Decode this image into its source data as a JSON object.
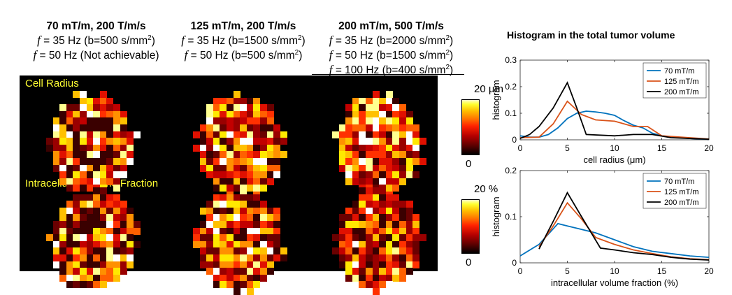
{
  "columns": [
    {
      "title": "70 mT/m, 200 T/m/s",
      "lines": [
        {
          "f": "f",
          "text": " = 35 Hz (b=500 s/mm",
          "sup": "2",
          "tail": ")"
        },
        {
          "f": "f",
          "text": " = 50 Hz (Not achievable)",
          "sup": "",
          "tail": ""
        }
      ]
    },
    {
      "title": "125 mT/m, 200 T/m/s",
      "lines": [
        {
          "f": "f",
          "text": " = 35 Hz (b=1500 s/mm",
          "sup": "2",
          "tail": ")"
        },
        {
          "f": "f",
          "text": " = 50 Hz (b=500 s/mm",
          "sup": "2",
          "tail": ")"
        }
      ]
    },
    {
      "title": "200 mT/m, 500 T/m/s",
      "lines": [
        {
          "f": "f",
          "text": " = 35 Hz (b=2000 s/mm",
          "sup": "2",
          "tail": ")"
        },
        {
          "f": "f",
          "text": " = 50 Hz (b=1500 s/mm",
          "sup": "2",
          "tail": ")"
        },
        {
          "f": "f",
          "text": " = 100 Hz (b=400 s/mm",
          "sup": "2",
          "tail": ")"
        }
      ]
    }
  ],
  "map_rows": [
    {
      "label": "Cell Radius",
      "colorbar_max": "20 µm",
      "colorbar_min": "0"
    },
    {
      "label": "Intracellular Volume Fraction",
      "colorbar_max": "20 %",
      "colorbar_min": "0"
    }
  ],
  "colors": {
    "70 mT/m": "#0072BD",
    "125 mT/m": "#D95319",
    "200 mT/m": "#000000",
    "map_label": "#ffff33"
  },
  "chart_data": [
    {
      "type": "line",
      "title": "Histogram in the total tumor volume",
      "xlabel": "cell radius (μm)",
      "ylabel": "histogram",
      "xlim": [
        0,
        20
      ],
      "ylim": [
        0,
        0.3
      ],
      "xticks": [
        0,
        5,
        10,
        15,
        20
      ],
      "yticks": [
        0,
        0.1,
        0.2,
        0.3
      ],
      "legend_position": "top-right",
      "series": [
        {
          "name": "70 mT/m",
          "color": "#0072BD",
          "x": [
            0,
            1,
            2,
            3,
            4,
            5,
            6,
            7,
            8,
            9,
            10,
            11,
            12,
            13,
            14,
            15,
            16,
            17,
            18,
            19,
            20
          ],
          "y": [
            0.015,
            0.01,
            0.01,
            0.02,
            0.045,
            0.08,
            0.1,
            0.108,
            0.105,
            0.1,
            0.092,
            0.072,
            0.055,
            0.045,
            0.025,
            0.015,
            0.01,
            0.008,
            0.005,
            0.003,
            0.002
          ]
        },
        {
          "name": "125 mT/m",
          "color": "#D95319",
          "x": [
            0,
            2,
            3.5,
            5,
            6.5,
            8,
            10,
            12,
            13.5,
            15,
            20
          ],
          "y": [
            0.008,
            0.01,
            0.06,
            0.145,
            0.095,
            0.075,
            0.07,
            0.05,
            0.05,
            0.015,
            0.003
          ]
        },
        {
          "name": "200 mT/m",
          "color": "#000000",
          "x": [
            0,
            1,
            2,
            3.5,
            5,
            6,
            7,
            10,
            12,
            14,
            16,
            20
          ],
          "y": [
            0.005,
            0.02,
            0.05,
            0.12,
            0.215,
            0.12,
            0.02,
            0.015,
            0.02,
            0.02,
            0.008,
            0.002
          ]
        }
      ]
    },
    {
      "type": "line",
      "xlabel": "intracellular volume fraction (%)",
      "ylabel": "histogram",
      "xlim": [
        0,
        20
      ],
      "ylim": [
        0,
        0.2
      ],
      "xticks": [
        0,
        5,
        10,
        15,
        20
      ],
      "yticks": [
        0,
        0.1,
        0.2
      ],
      "legend_position": "top-right",
      "series": [
        {
          "name": "70 mT/m",
          "color": "#0072BD",
          "x": [
            0,
            2,
            4,
            5,
            6,
            8,
            10,
            12,
            14,
            16,
            18,
            20
          ],
          "y": [
            0.015,
            0.04,
            0.085,
            0.08,
            0.075,
            0.065,
            0.05,
            0.035,
            0.025,
            0.02,
            0.015,
            0.012
          ]
        },
        {
          "name": "125 mT/m",
          "color": "#D95319",
          "x": [
            2,
            3.5,
            5,
            6.5,
            8,
            10,
            12,
            14,
            16,
            18,
            20
          ],
          "y": [
            0.035,
            0.08,
            0.13,
            0.095,
            0.055,
            0.04,
            0.028,
            0.02,
            0.013,
            0.009,
            0.007
          ]
        },
        {
          "name": "200 mT/m",
          "color": "#000000",
          "x": [
            2,
            3.5,
            5,
            6.5,
            8.5,
            10,
            12,
            14,
            16,
            18,
            20
          ],
          "y": [
            0.03,
            0.09,
            0.152,
            0.1,
            0.032,
            0.028,
            0.022,
            0.018,
            0.012,
            0.008,
            0.006
          ]
        }
      ]
    }
  ]
}
